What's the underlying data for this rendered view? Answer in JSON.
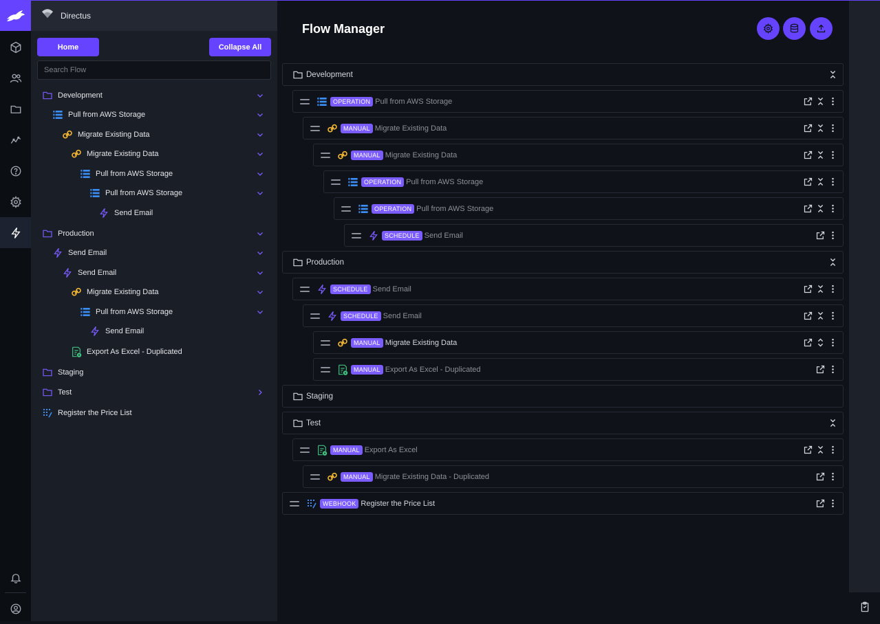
{
  "colors": {
    "accent": "#6644ff",
    "badge": "#7b5cff",
    "folder": "#7b5cff",
    "operation": "#3b8ef6",
    "manual": "#f5b833",
    "schedule": "#7b5cff",
    "excel": "#3fbf7f",
    "webhook": "#3b8ef6"
  },
  "project": {
    "name": "Directus"
  },
  "modules": [
    "rabbit-logo-icon",
    "cube-icon",
    "users-icon",
    "folder-icon",
    "insights-icon",
    "help-icon",
    "settings-icon",
    "flows-icon",
    "bell-icon",
    "account-icon"
  ],
  "nav": {
    "home_label": "Home",
    "collapse_label": "Collapse All",
    "search_placeholder": "Search Flow",
    "items": [
      {
        "label": "Development",
        "icon": "folder",
        "chevron": "down"
      },
      {
        "label": "Pull from AWS Storage",
        "icon": "operation",
        "chevron": "down"
      },
      {
        "label": "Migrate Existing Data",
        "icon": "manual",
        "chevron": "down"
      },
      {
        "label": "Migrate Existing Data",
        "icon": "manual",
        "chevron": "down"
      },
      {
        "label": "Pull from AWS Storage",
        "icon": "operation",
        "chevron": "down"
      },
      {
        "label": "Pull from AWS Storage",
        "icon": "operation",
        "chevron": "down"
      },
      {
        "label": "Send Email",
        "icon": "schedule",
        "chevron": ""
      },
      {
        "label": "Production",
        "icon": "folder",
        "chevron": "down"
      },
      {
        "label": "Send Email",
        "icon": "schedule",
        "chevron": "down"
      },
      {
        "label": "Send Email",
        "icon": "schedule",
        "chevron": "down"
      },
      {
        "label": "Migrate Existing Data",
        "icon": "manual",
        "chevron": "down"
      },
      {
        "label": "Pull from AWS Storage",
        "icon": "operation",
        "chevron": "down"
      },
      {
        "label": "Send Email",
        "icon": "schedule",
        "chevron": ""
      },
      {
        "label": "Export As Excel - Duplicated",
        "icon": "excel",
        "chevron": ""
      },
      {
        "label": "Staging",
        "icon": "folder",
        "chevron": ""
      },
      {
        "label": "Test",
        "icon": "folder",
        "chevron": "right"
      },
      {
        "label": "Register the Price List",
        "icon": "webhook",
        "chevron": ""
      }
    ]
  },
  "main": {
    "title": "Flow Manager",
    "header_buttons": [
      "settings-icon",
      "database-icon",
      "upload-icon"
    ],
    "rows": [
      {
        "type": "folder",
        "name": "Development",
        "toggle": "collapse"
      },
      {
        "type": "flow",
        "badge": "OPERATION",
        "name": "Pull from AWS Storage",
        "icon": "operation",
        "toggle": "collapse",
        "bright": false
      },
      {
        "type": "flow",
        "badge": "MANUAL",
        "name": "Migrate Existing Data",
        "icon": "manual",
        "toggle": "collapse",
        "bright": false
      },
      {
        "type": "flow",
        "badge": "MANUAL",
        "name": "Migrate Existing Data",
        "icon": "manual",
        "toggle": "collapse",
        "bright": false
      },
      {
        "type": "flow",
        "badge": "OPERATION",
        "name": "Pull from AWS Storage",
        "icon": "operation",
        "toggle": "collapse",
        "bright": false
      },
      {
        "type": "flow",
        "badge": "OPERATION",
        "name": "Pull from AWS Storage",
        "icon": "operation",
        "toggle": "collapse",
        "bright": false
      },
      {
        "type": "flow",
        "badge": "SCHEDULE",
        "name": "Send Email",
        "icon": "schedule",
        "toggle": "",
        "bright": false
      },
      {
        "type": "folder",
        "name": "Production",
        "toggle": "collapse"
      },
      {
        "type": "flow",
        "badge": "SCHEDULE",
        "name": "Send Email",
        "icon": "schedule",
        "toggle": "collapse",
        "bright": false
      },
      {
        "type": "flow",
        "badge": "SCHEDULE",
        "name": "Send Email",
        "icon": "schedule",
        "toggle": "collapse",
        "bright": false
      },
      {
        "type": "flow",
        "badge": "MANUAL",
        "name": "Migrate Existing Data",
        "icon": "manual",
        "toggle": "expand",
        "bright": true
      },
      {
        "type": "flow",
        "badge": "MANUAL",
        "name": "Export As Excel - Duplicated",
        "icon": "excel",
        "toggle": "",
        "bright": false
      },
      {
        "type": "folder",
        "name": "Staging",
        "toggle": ""
      },
      {
        "type": "folder",
        "name": "Test",
        "toggle": "collapse"
      },
      {
        "type": "flow",
        "badge": "MANUAL",
        "name": "Export As Excel",
        "icon": "excel",
        "toggle": "collapse",
        "bright": false
      },
      {
        "type": "flow",
        "badge": "MANUAL",
        "name": "Migrate Existing Data - Duplicated",
        "icon": "manual",
        "toggle": "",
        "bright": false
      },
      {
        "type": "flow",
        "badge": "WEBHOOK",
        "name": "Register the Price List",
        "icon": "webhook",
        "toggle": "",
        "bright": true
      }
    ]
  }
}
